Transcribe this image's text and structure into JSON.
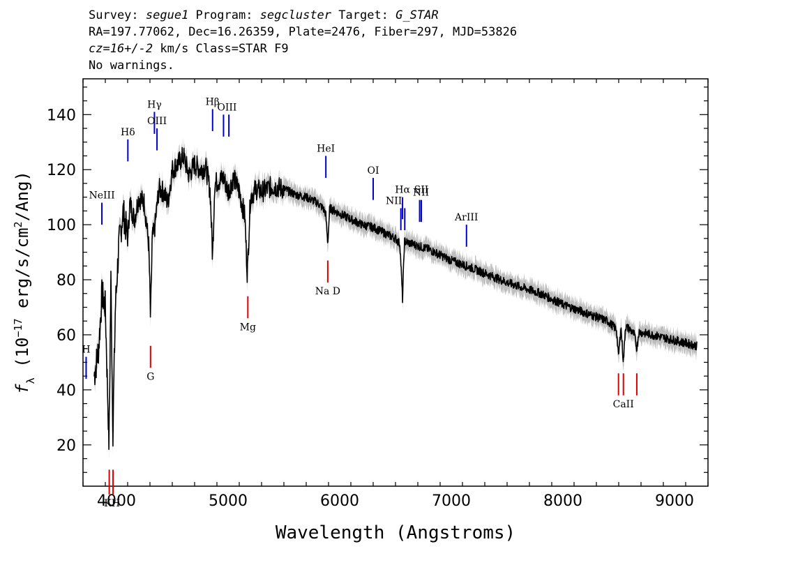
{
  "header": {
    "line1": {
      "survey_label": "Survey: ",
      "survey": "segue1",
      "program_label": " Program: ",
      "program": "segcluster",
      "target_label": " Target: ",
      "target": "G_STAR"
    },
    "line2": "RA=197.77062, Dec=16.26359, Plate=2476, Fiber=297, MJD=53826",
    "line3": {
      "cz": "cz=16+/-2",
      "rest": " km/s Class=STAR F9"
    },
    "line4": "No warnings."
  },
  "chart_data": {
    "type": "line",
    "xlabel": "Wavelength (Angstroms)",
    "ylabel": "f_λ (10^-17 erg/s/cm^2/Ang)",
    "xlim": [
      3700,
      9300
    ],
    "ylim": [
      5,
      153
    ],
    "xticks": [
      4000,
      5000,
      6000,
      7000,
      8000,
      9000
    ],
    "yticks": [
      20,
      40,
      60,
      80,
      100,
      120,
      140
    ],
    "colors": {
      "spectrum": "#000000",
      "error_band": "#bdbdbd",
      "emission_marker": "#0000cc",
      "absorption_marker": "#dd0000"
    },
    "series": [
      {
        "x": [
          3800,
          3840,
          3870,
          3900,
          3933,
          3950,
          3968,
          3990,
          4020,
          4060,
          4101,
          4120,
          4160,
          4200,
          4250,
          4290,
          4305,
          4320,
          4340,
          4380,
          4420,
          4460,
          4500,
          4550,
          4600,
          4650,
          4700,
          4750,
          4800,
          4840,
          4861,
          4880,
          4920,
          4960,
          5000,
          5050,
          5100,
          5150,
          5172,
          5200,
          5250,
          5300,
          5400,
          5500,
          5600,
          5700,
          5800,
          5850,
          5875,
          5893,
          5910,
          6000,
          6100,
          6200,
          6300,
          6400,
          6500,
          6540,
          6563,
          6580,
          6650,
          6800,
          7000,
          7200,
          7500,
          7800,
          8000,
          8200,
          8400,
          8480,
          8498,
          8520,
          8542,
          8560,
          8600,
          8640,
          8662,
          8680,
          8800,
          9000,
          9100,
          9200
        ],
        "y": [
          45,
          55,
          75,
          70,
          20,
          80,
          25,
          70,
          92,
          105,
          95,
          108,
          102,
          110,
          108,
          92,
          65,
          95,
          98,
          113,
          112,
          108,
          120,
          122,
          125,
          118,
          122,
          120,
          121,
          112,
          88,
          115,
          116,
          117,
          112,
          117,
          112,
          103,
          82,
          110,
          113,
          112,
          114,
          113,
          111,
          110,
          108,
          106,
          104,
          93,
          106,
          104,
          102,
          100,
          99,
          97,
          95,
          93,
          73,
          94,
          93,
          91,
          87,
          84,
          79,
          75,
          71,
          68,
          65,
          62,
          52,
          63,
          50,
          63,
          62,
          60,
          55,
          61,
          60,
          58,
          57,
          56
        ]
      }
    ],
    "line_markers": [
      {
        "label": "H",
        "x": 3728,
        "y_bottom": 44,
        "y_top": 52,
        "color": "blue",
        "label_pos": "top"
      },
      {
        "label": "NeIII",
        "x": 3869,
        "y_bottom": 100,
        "y_top": 108,
        "color": "blue",
        "label_pos": "top"
      },
      {
        "label": "Hδ",
        "x": 4102,
        "y_bottom": 123,
        "y_top": 131,
        "color": "blue",
        "label_pos": "top"
      },
      {
        "label": "Hγ",
        "x": 4340,
        "y_bottom": 133,
        "y_top": 141,
        "color": "blue",
        "label_pos": "top"
      },
      {
        "label": "OIII",
        "x": 4363,
        "y_bottom": 127,
        "y_top": 135,
        "color": "blue",
        "label_pos": "top"
      },
      {
        "label": "Hβ",
        "x": 4861,
        "y_bottom": 134,
        "y_top": 142,
        "color": "blue",
        "label_pos": "top"
      },
      {
        "label": "OIII",
        "x": 4959,
        "y_bottom": 132,
        "y_top": 140,
        "color": "blue",
        "label_pos": "top",
        "label_dx": 0.5
      },
      {
        "label": "",
        "x": 5007,
        "y_bottom": 132,
        "y_top": 140,
        "color": "blue",
        "label_pos": "none"
      },
      {
        "label": "HeI",
        "x": 5876,
        "y_bottom": 117,
        "y_top": 125,
        "color": "blue",
        "label_pos": "top"
      },
      {
        "label": "OI",
        "x": 6300,
        "y_bottom": 109,
        "y_top": 117,
        "color": "blue",
        "label_pos": "top"
      },
      {
        "label": "NII",
        "x": 6548,
        "y_bottom": 98,
        "y_top": 106,
        "color": "blue",
        "label_pos": "top",
        "label_dx": -1
      },
      {
        "label": "Hα",
        "x": 6563,
        "y_bottom": 102,
        "y_top": 110,
        "color": "blue",
        "label_pos": "top"
      },
      {
        "label": "",
        "x": 6583,
        "y_bottom": 98,
        "y_top": 106,
        "color": "blue",
        "label_pos": "none"
      },
      {
        "label": "NII",
        "x": 6716,
        "y_bottom": 101,
        "y_top": 109,
        "color": "blue",
        "label_pos": "top",
        "label_dx": 0.2
      },
      {
        "label": "SII",
        "x": 6731,
        "y_bottom": 101,
        "y_top": 109,
        "color": "blue",
        "label_pos": "top",
        "label_dy": -4
      },
      {
        "label": "ArIII",
        "x": 7136,
        "y_bottom": 92,
        "y_top": 100,
        "color": "blue",
        "label_pos": "top"
      },
      {
        "label": "KH",
        "x": 3935,
        "y_bottom": 2,
        "y_top": 11,
        "color": "red",
        "label_pos": "bottom",
        "label_dx": 0.4
      },
      {
        "label": "",
        "x": 3969,
        "y_bottom": 2,
        "y_top": 11,
        "color": "red",
        "label_pos": "none"
      },
      {
        "label": "G",
        "x": 4305,
        "y_bottom": 48,
        "y_top": 56,
        "color": "red",
        "label_pos": "bottom"
      },
      {
        "label": "Mg",
        "x": 5177,
        "y_bottom": 66,
        "y_top": 74,
        "color": "red",
        "label_pos": "bottom"
      },
      {
        "label": "Na D",
        "x": 5893,
        "y_bottom": 79,
        "y_top": 87,
        "color": "red",
        "label_pos": "bottom"
      },
      {
        "label": "CaII",
        "x": 8498,
        "y_bottom": 38,
        "y_top": 46,
        "color": "red",
        "label_pos": "bottom",
        "label_dx": 0.7
      },
      {
        "label": "",
        "x": 8542,
        "y_bottom": 38,
        "y_top": 46,
        "color": "red",
        "label_pos": "none"
      },
      {
        "label": "",
        "x": 8662,
        "y_bottom": 38,
        "y_top": 46,
        "color": "red",
        "label_pos": "none"
      }
    ]
  }
}
